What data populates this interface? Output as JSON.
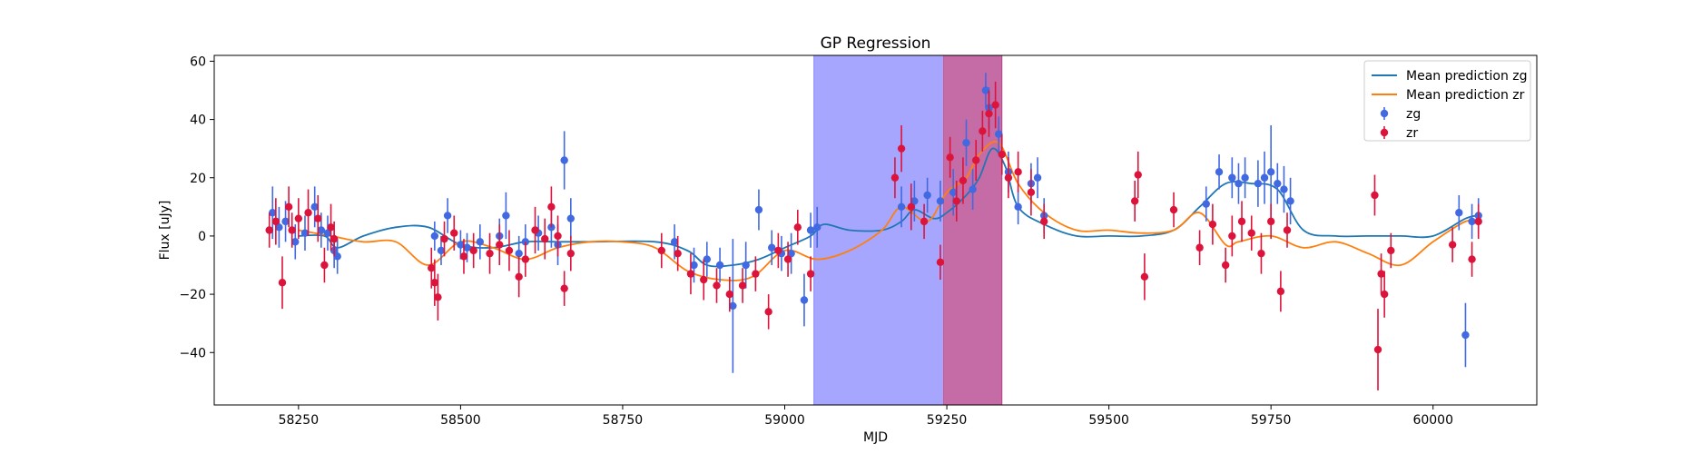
{
  "chart_data": {
    "type": "scatter",
    "title": "GP Regression",
    "xlabel": "MJD",
    "ylabel": "Flux [uJy]",
    "xlim": [
      58120,
      60160
    ],
    "ylim": [
      -58,
      62
    ],
    "xticks": [
      58250,
      58500,
      58750,
      59000,
      59250,
      59500,
      59750,
      60000
    ],
    "yticks": [
      -40,
      -20,
      0,
      20,
      40,
      60
    ],
    "grid": false,
    "legend_position": "top-right",
    "colors": {
      "zg_points": "#4169e1",
      "zr_points": "#dc143c",
      "zg_mean": "#1f77b4",
      "zr_mean": "#ff7f0e",
      "span_blue": "#0000ff",
      "span_red": "#ff0000"
    },
    "shaded_spans": [
      {
        "x0": 59045,
        "x1": 59335,
        "color": "#0000ff"
      },
      {
        "x0": 59245,
        "x1": 59335,
        "color": "#ff0000"
      }
    ],
    "series": [
      {
        "name": "Mean prediction zg",
        "kind": "line",
        "x": [
          58250,
          58290,
          58310,
          58350,
          58400,
          58450,
          58500,
          58550,
          58600,
          58650,
          58700,
          58800,
          58850,
          58880,
          58920,
          58960,
          59000,
          59040,
          59060,
          59100,
          59150,
          59180,
          59200,
          59230,
          59250,
          59280,
          59300,
          59320,
          59340,
          59360,
          59400,
          59450,
          59500,
          59550,
          59600,
          59640,
          59680,
          59720,
          59760,
          59800,
          59850,
          59900,
          59950,
          60000,
          60050,
          60070
        ],
        "values": [
          0,
          0,
          -4,
          0,
          3,
          3,
          -3,
          -4,
          -2,
          -2,
          -2,
          -2,
          -5,
          -10,
          -10,
          -8,
          -4,
          0,
          4,
          2,
          2,
          5,
          9,
          6,
          8,
          14,
          20,
          30,
          24,
          10,
          4,
          0,
          0,
          0,
          2,
          10,
          18,
          18,
          16,
          2,
          0,
          0,
          0,
          0,
          6,
          7
        ]
      },
      {
        "name": "Mean prediction zr",
        "kind": "line",
        "x": [
          58250,
          58300,
          58350,
          58400,
          58450,
          58500,
          58550,
          58600,
          58650,
          58700,
          58750,
          58800,
          58850,
          58900,
          58950,
          59000,
          59050,
          59100,
          59150,
          59180,
          59220,
          59250,
          59280,
          59300,
          59330,
          59360,
          59400,
          59450,
          59500,
          59550,
          59600,
          59640,
          59680,
          59700,
          59750,
          59800,
          59850,
          59900,
          59950,
          60000,
          60050,
          60070
        ],
        "values": [
          2,
          0,
          -2,
          -2,
          -10,
          -2,
          -4,
          -8,
          -4,
          -2,
          -2,
          -4,
          -12,
          -15,
          -14,
          -5,
          -8,
          -5,
          2,
          10,
          5,
          15,
          20,
          28,
          32,
          18,
          8,
          2,
          2,
          1,
          2,
          8,
          -3,
          -2,
          0,
          -4,
          -2,
          -6,
          -10,
          -2,
          5,
          4
        ]
      },
      {
        "name": "zg",
        "kind": "errorbar",
        "x": [
          58210,
          58220,
          58230,
          58245,
          58260,
          58275,
          58285,
          58295,
          58305,
          58310,
          58460,
          58470,
          58480,
          58500,
          58510,
          58530,
          58560,
          58570,
          58590,
          58600,
          58620,
          58640,
          58650,
          58660,
          58670,
          58830,
          58860,
          58880,
          58900,
          58920,
          58940,
          58960,
          58980,
          58995,
          59010,
          59030,
          59040,
          59050,
          59180,
          59200,
          59220,
          59240,
          59260,
          59280,
          59290,
          59310,
          59315,
          59330,
          59345,
          59360,
          59380,
          59390,
          59400,
          59650,
          59670,
          59690,
          59700,
          59710,
          59730,
          59740,
          59750,
          59760,
          59770,
          59780,
          60040,
          60050,
          60060,
          60070
        ],
        "values": [
          8,
          3,
          5,
          -2,
          1,
          10,
          2,
          1,
          -5,
          -7,
          0,
          -5,
          7,
          -3,
          -4,
          -2,
          0,
          7,
          -6,
          -2,
          1,
          3,
          -3,
          26,
          6,
          -2,
          -10,
          -8,
          -10,
          -24,
          -10,
          9,
          -4,
          -6,
          -6,
          -22,
          2,
          3,
          10,
          12,
          14,
          12,
          15,
          32,
          16,
          50,
          44,
          35,
          22,
          10,
          18,
          20,
          7,
          11,
          22,
          20,
          18,
          20,
          18,
          20,
          22,
          18,
          16,
          12,
          8,
          -34,
          5,
          7
        ],
        "errors": [
          9,
          7,
          7,
          6,
          6,
          7,
          6,
          6,
          6,
          6,
          5,
          5,
          6,
          5,
          5,
          6,
          6,
          8,
          6,
          6,
          6,
          7,
          7,
          10,
          7,
          6,
          6,
          6,
          6,
          23,
          8,
          7,
          6,
          6,
          7,
          9,
          6,
          7,
          7,
          7,
          6,
          7,
          8,
          8,
          7,
          6,
          7,
          6,
          7,
          6,
          7,
          7,
          6,
          6,
          6,
          7,
          7,
          7,
          8,
          9,
          16,
          7,
          8,
          8,
          6,
          11,
          6,
          6
        ]
      },
      {
        "name": "zr",
        "kind": "errorbar",
        "x": [
          58205,
          58215,
          58225,
          58235,
          58240,
          58250,
          58265,
          58280,
          58290,
          58300,
          58305,
          58455,
          58460,
          58465,
          58475,
          58490,
          58505,
          58520,
          58545,
          58560,
          58575,
          58590,
          58600,
          58615,
          58630,
          58640,
          58650,
          58660,
          58670,
          58810,
          58835,
          58855,
          58875,
          58895,
          58915,
          58935,
          58955,
          58975,
          58990,
          59005,
          59020,
          59040,
          59170,
          59180,
          59195,
          59215,
          59240,
          59255,
          59265,
          59275,
          59295,
          59305,
          59315,
          59325,
          59335,
          59345,
          59360,
          59380,
          59400,
          59540,
          59545,
          59555,
          59600,
          59640,
          59660,
          59680,
          59690,
          59705,
          59720,
          59735,
          59750,
          59765,
          59775,
          59910,
          59915,
          59920,
          59925,
          59935,
          60030,
          60060,
          60070
        ],
        "values": [
          2,
          5,
          -16,
          10,
          2,
          6,
          8,
          6,
          -10,
          3,
          -1,
          -11,
          -16,
          -21,
          -1,
          1,
          -7,
          -5,
          -6,
          -3,
          -5,
          -14,
          -8,
          2,
          -1,
          10,
          0,
          -18,
          -6,
          -5,
          -6,
          -13,
          -15,
          -17,
          -20,
          -17,
          -13,
          -26,
          -5,
          -8,
          3,
          -13,
          20,
          30,
          10,
          5,
          -9,
          27,
          12,
          19,
          26,
          36,
          42,
          45,
          28,
          20,
          22,
          15,
          5,
          12,
          21,
          -14,
          9,
          -4,
          4,
          -10,
          0,
          5,
          1,
          -6,
          5,
          -19,
          2,
          14,
          -39,
          -13,
          -20,
          -5,
          -3,
          -8,
          5
        ],
        "errors": [
          6,
          8,
          9,
          7,
          6,
          7,
          8,
          8,
          6,
          8,
          6,
          7,
          8,
          8,
          6,
          6,
          6,
          6,
          7,
          7,
          7,
          7,
          6,
          8,
          7,
          7,
          7,
          6,
          6,
          6,
          6,
          7,
          7,
          6,
          6,
          6,
          6,
          6,
          6,
          6,
          6,
          6,
          7,
          8,
          8,
          6,
          6,
          7,
          7,
          8,
          7,
          7,
          8,
          8,
          7,
          7,
          7,
          8,
          6,
          7,
          8,
          8,
          6,
          6,
          7,
          6,
          7,
          7,
          6,
          7,
          6,
          7,
          6,
          7,
          14,
          7,
          8,
          6,
          6,
          6,
          6
        ]
      }
    ]
  }
}
